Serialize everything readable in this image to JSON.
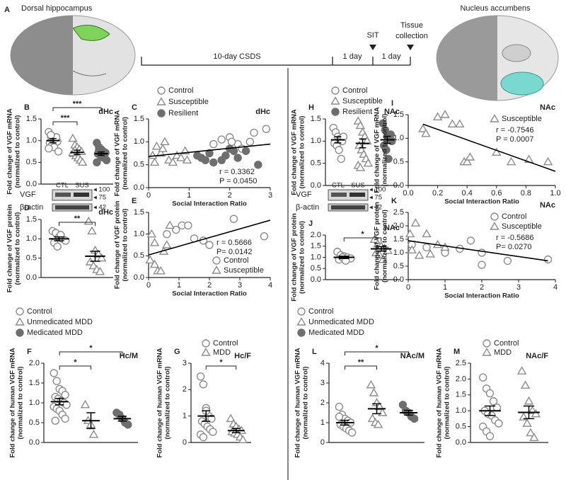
{
  "panel_a": {
    "label": "A",
    "left_title": "Dorsal hippocampus",
    "right_title": "Nucleus accumbens",
    "durations": [
      "10-day CSDS",
      "1 day",
      "1 day"
    ],
    "events": [
      [
        "SIT"
      ],
      [
        "Tissue",
        "collection"
      ]
    ]
  },
  "chart_data": [
    {
      "type": "strip",
      "panel_label": "B",
      "region": "dHc",
      "ylabel": [
        "Fold change of VGF mRNA",
        "(normalized to control)"
      ],
      "ylim": [
        0,
        1.5
      ],
      "yticks": [
        {
          "value": 0,
          "label": "0.0"
        },
        0.5,
        {
          "value": 1,
          "label": "1.0"
        },
        1.5
      ],
      "significance": [
        "***",
        "***"
      ],
      "groups": [
        {
          "marker": "circle",
          "color": "#8c8c8c",
          "values": [
            1.2,
            1.1,
            1.05,
            1.0,
            0.98,
            0.95,
            0.9,
            0.85,
            1.08,
            0.75,
            0.82,
            1.13
          ],
          "mean": 1.0,
          "sem": 0.05
        },
        {
          "marker": "triangle",
          "color": "#8c8c8c",
          "values": [
            1.05,
            0.9,
            0.85,
            0.8,
            0.75,
            0.7,
            0.65,
            0.6,
            0.55,
            0.5,
            0.72,
            0.78
          ],
          "mean": 0.73,
          "sem": 0.05
        },
        {
          "marker": "filled-circle",
          "color": "#6e6e6e",
          "values": [
            0.95,
            0.85,
            0.8,
            0.75,
            0.72,
            0.7,
            0.68,
            0.65,
            0.6,
            0.55,
            0.5,
            0.78,
            0.62
          ],
          "mean": 0.7,
          "sem": 0.04
        }
      ]
    },
    {
      "type": "scatter",
      "panel_label": "C",
      "region": "dHc",
      "ylabel": [
        "Fold change of VGF mRNA",
        "(normalized to control)"
      ],
      "xlabel": "Social Interaction Ratio",
      "xlim": [
        0,
        3
      ],
      "xticks": [
        0,
        1,
        2,
        3
      ],
      "ylim": [
        0,
        1.5
      ],
      "yticks": [
        {
          "value": 0,
          "label": "0.0"
        },
        0.5,
        {
          "value": 1,
          "label": "1.0"
        },
        1.5
      ],
      "legend": "above",
      "stats": [
        "r = 0.3362",
        "P = 0.0450"
      ],
      "fit_line": {
        "x": [
          0,
          3
        ],
        "y": [
          0.68,
          0.95
        ]
      },
      "series": [
        {
          "name": "Control",
          "marker": "circle",
          "color": "#8c8c8c",
          "x": [
            1.8,
            2.0,
            2.2,
            2.5,
            2.9,
            2.3,
            1.6,
            2.6,
            2.05
          ],
          "values": [
            1.05,
            1.1,
            0.95,
            1.0,
            1.28,
            0.85,
            0.95,
            1.2,
            1.0
          ]
        },
        {
          "name": "Susceptible",
          "marker": "triangle",
          "color": "#8c8c8c",
          "x": [
            0.1,
            0.2,
            0.3,
            0.35,
            0.5,
            0.4,
            0.6,
            0.7,
            0.8,
            0.9,
            0.15,
            0.95
          ],
          "values": [
            0.7,
            0.9,
            0.75,
            0.85,
            0.6,
            1.0,
            0.55,
            0.7,
            0.65,
            0.8,
            0.55,
            0.6
          ]
        },
        {
          "name": "Resilient",
          "marker": "filled-circle",
          "color": "#6e6e6e",
          "x": [
            1.2,
            1.4,
            1.5,
            1.6,
            1.8,
            1.9,
            2.1,
            2.2,
            2.4,
            2.7,
            1.3,
            2.0
          ],
          "values": [
            0.7,
            0.6,
            0.75,
            0.55,
            0.6,
            0.7,
            0.8,
            0.65,
            0.8,
            0.5,
            0.65,
            0.85
          ]
        }
      ]
    },
    {
      "type": "strip",
      "panel_label": "D",
      "region": "dHc",
      "ylabel": [
        "Fold change of VGF protein",
        "(normalized to control)"
      ],
      "ylim": [
        0,
        1.5
      ],
      "yticks": [
        {
          "value": 0,
          "label": "0.0"
        },
        0.5,
        {
          "value": 1,
          "label": "1.0"
        },
        1.5
      ],
      "significance": [
        "**"
      ],
      "blot": {
        "columns": [
          "CTL",
          "SUS"
        ],
        "rows": [
          "VGF",
          "β-actin"
        ],
        "sizes": [
          "◂ 100",
          "◂ 75",
          "◂ 42"
        ]
      },
      "groups": [
        {
          "marker": "circle",
          "color": "#8c8c8c",
          "values": [
            1.2,
            1.15,
            1.05,
            1.0,
            0.95,
            0.9,
            0.8,
            1.1
          ],
          "mean": 1.0,
          "sem": 0.05
        },
        {
          "marker": "triangle",
          "color": "#8c8c8c",
          "values": [
            1.45,
            1.2,
            0.7,
            0.6,
            0.5,
            0.4,
            0.3,
            0.2,
            0.15
          ],
          "mean": 0.55,
          "sem": 0.13
        }
      ]
    },
    {
      "type": "scatter",
      "panel_label": "E",
      "ylabel": [
        "Fold change of VGF protein",
        "(normalized to control)"
      ],
      "xlabel": "Social Interaction Ratio",
      "xlim": [
        0,
        4
      ],
      "xticks": [
        0,
        1,
        2,
        3,
        4
      ],
      "ylim": [
        0,
        1.5
      ],
      "yticks": [
        {
          "value": 0,
          "label": "0.0"
        },
        0.5,
        {
          "value": 1,
          "label": "1.0"
        },
        1.5
      ],
      "legend": "bottom-right",
      "stats": [
        "r = 0.5666",
        "P= 0.0142"
      ],
      "fit_line": {
        "x": [
          0,
          4
        ],
        "y": [
          0.52,
          1.32
        ]
      },
      "series": [
        {
          "name": "Control",
          "marker": "circle",
          "color": "#8c8c8c",
          "x": [
            0.6,
            0.9,
            1.1,
            1.3,
            1.5,
            2.0,
            2.8,
            3.8,
            1.8
          ],
          "values": [
            1.0,
            1.1,
            1.2,
            1.2,
            0.9,
            0.75,
            1.35,
            0.95,
            0.85
          ]
        },
        {
          "name": "Susceptible",
          "marker": "triangle",
          "color": "#8c8c8c",
          "x": [
            0.05,
            0.2,
            0.3,
            0.4,
            0.5,
            0.7,
            0.6,
            0.1,
            0.2
          ],
          "values": [
            0.4,
            0.3,
            0.15,
            0.15,
            0.6,
            1.2,
            0.75,
            1.0,
            0.8
          ]
        }
      ]
    },
    {
      "type": "strip",
      "panel_label": "F",
      "region": "Hc/M",
      "ylabel": [
        "Fold change of human VGF mRNA",
        "(normalized to control)"
      ],
      "ylim": [
        0,
        2
      ],
      "yticks": [
        {
          "value": 0,
          "label": "0.0"
        },
        0.5,
        {
          "value": 1,
          "label": "1.0"
        },
        1.5,
        {
          "value": 2,
          "label": "2.0"
        }
      ],
      "significance": [
        "*",
        "*"
      ],
      "legend": "above",
      "groups": [
        {
          "name": "Control",
          "marker": "circle",
          "color": "#8c8c8c",
          "values": [
            1.75,
            1.55,
            1.35,
            1.3,
            1.2,
            1.15,
            1.1,
            1.05,
            1.0,
            0.95,
            0.9,
            0.85,
            0.8,
            0.7,
            0.6,
            0.55
          ],
          "mean": 1.03,
          "sem": 0.08
        },
        {
          "name": "Unmedicated MDD",
          "marker": "triangle",
          "color": "#8c8c8c",
          "values": [
            0.95,
            0.55,
            0.45,
            0.2
          ],
          "mean": 0.55,
          "sem": 0.2
        },
        {
          "name": "Medicated MDD",
          "marker": "filled-circle",
          "color": "#6e6e6e",
          "values": [
            0.75,
            0.7,
            0.6,
            0.5,
            0.45
          ],
          "mean": 0.6,
          "sem": 0.06
        }
      ]
    },
    {
      "type": "strip",
      "panel_label": "G",
      "region": "Hc/F",
      "ylabel": [
        "Fold change of human VGF mRNA",
        "(normalized to control)"
      ],
      "ylim": [
        0,
        3
      ],
      "yticks": [
        0,
        1,
        2,
        3
      ],
      "significance": [
        "*"
      ],
      "legend": "above",
      "groups": [
        {
          "name": "Control",
          "marker": "circle",
          "color": "#8c8c8c",
          "values": [
            2.5,
            2.2,
            1.3,
            1.0,
            0.9,
            0.8,
            0.7,
            0.6,
            0.5,
            0.4,
            0.3,
            0.2,
            1.2
          ],
          "mean": 1.0,
          "sem": 0.2
        },
        {
          "name": "MDD",
          "marker": "triangle",
          "color": "#8c8c8c",
          "values": [
            0.9,
            0.7,
            0.6,
            0.5,
            0.45,
            0.4,
            0.35,
            0.3,
            0.2,
            0.1
          ],
          "mean": 0.45,
          "sem": 0.08
        }
      ]
    },
    {
      "type": "strip",
      "panel_label": "H",
      "region": "NAc",
      "ylabel": [
        "Fold change of VGF mRNA",
        "(normalized to control)"
      ],
      "ylim": [
        0,
        1.5
      ],
      "yticks": [
        {
          "value": 0,
          "label": "0.0"
        },
        0.5,
        {
          "value": 1,
          "label": "1.0"
        },
        1.5
      ],
      "legend": "above",
      "groups": [
        {
          "name": "Control",
          "marker": "circle",
          "color": "#8c8c8c",
          "values": [
            1.3,
            1.2,
            1.1,
            1.05,
            1.0,
            0.95,
            0.9,
            0.8,
            0.6,
            1.1
          ],
          "mean": 1.03,
          "sem": 0.07
        },
        {
          "name": "Susceptible",
          "marker": "triangle",
          "color": "#8c8c8c",
          "values": [
            1.45,
            1.35,
            1.2,
            1.1,
            1.0,
            0.9,
            0.8,
            0.7,
            0.6,
            0.5,
            0.45,
            0.4
          ],
          "mean": 0.95,
          "sem": 0.1
        },
        {
          "name": "Resilient",
          "marker": "filled-circle",
          "color": "#6e6e6e",
          "values": [
            1.4,
            1.25,
            1.1,
            1.05,
            1.0,
            0.9,
            0.8,
            0.6,
            1.15
          ],
          "mean": 1.03,
          "sem": 0.08
        }
      ]
    },
    {
      "type": "scatter",
      "panel_label": "I",
      "region": "NAc",
      "ylabel": [
        "Fold change of VGF mRNA",
        "(normalized to control)"
      ],
      "xlabel": "Social Interaction Ratio",
      "xlim": [
        0,
        1
      ],
      "xticks": [
        {
          "value": 0,
          "label": "0.0"
        },
        0.2,
        0.4,
        0.6,
        0.8,
        {
          "value": 1,
          "label": "1.0"
        }
      ],
      "ylim": [
        0,
        1.5
      ],
      "yticks": [
        {
          "value": 0,
          "label": "0.0"
        },
        0.5,
        {
          "value": 1,
          "label": "1.0"
        },
        1.5
      ],
      "legend": "top-right",
      "stats": [
        "r = -0.7546",
        "P = 0.0007"
      ],
      "fit_line": {
        "x": [
          0.1,
          1
        ],
        "y": [
          1.3,
          0.3
        ]
      },
      "series": [
        {
          "name": "Susceptible",
          "marker": "triangle",
          "color": "#8c8c8c",
          "x": [
            0.1,
            0.12,
            0.2,
            0.25,
            0.3,
            0.35,
            0.38,
            0.4,
            0.42,
            0.6,
            0.7,
            0.82,
            0.95
          ],
          "values": [
            1.2,
            1.1,
            1.45,
            1.5,
            1.3,
            1.3,
            0.5,
            0.5,
            0.6,
            0.7,
            0.5,
            0.55,
            0.5
          ]
        }
      ]
    },
    {
      "type": "strip",
      "panel_label": "J",
      "region": "NAc",
      "ylabel": [
        "Fold change of VGF protein",
        "(normalized to control)"
      ],
      "ylim": [
        0,
        2
      ],
      "yticks": [
        {
          "value": 0,
          "label": "0.0"
        },
        0.5,
        {
          "value": 1,
          "label": "1.0"
        },
        1.5,
        {
          "value": 2,
          "label": "2.0"
        }
      ],
      "significance": [
        "*"
      ],
      "blot": {
        "columns": [
          "CTL",
          "SUS"
        ],
        "rows": [
          "VGF",
          "β-actin"
        ],
        "sizes": [
          "◂ 100",
          "◂ 75",
          "◂ 42"
        ]
      },
      "groups": [
        {
          "marker": "circle",
          "color": "#8c8c8c",
          "values": [
            1.25,
            1.1,
            1.05,
            1.0,
            0.95,
            0.9,
            1.0,
            0.85
          ],
          "mean": 1.0,
          "sem": 0.05
        },
        {
          "marker": "triangle",
          "color": "#8c8c8c",
          "values": [
            1.8,
            1.6,
            1.5,
            1.4,
            1.3,
            1.2,
            1.1,
            0.9
          ],
          "mean": 1.38,
          "sem": 0.1
        }
      ]
    },
    {
      "type": "scatter",
      "panel_label": "K",
      "region": "NAc",
      "ylabel": [
        "Fold change of VGF protein",
        "(normalized to control)"
      ],
      "xlabel": "Social Interaction Ratio",
      "xlim": [
        0,
        4
      ],
      "xticks": [
        0,
        1,
        2,
        3,
        4
      ],
      "ylim": [
        0,
        2.5
      ],
      "yticks": [
        {
          "value": 0,
          "label": "0.0"
        },
        0.5,
        {
          "value": 1,
          "label": "1.0"
        },
        1.5,
        {
          "value": 2,
          "label": "2.0"
        },
        2.5
      ],
      "legend": "top-right",
      "stats": [
        "r = -0.5686",
        "P= 0.0270"
      ],
      "fit_line": {
        "x": [
          0,
          3.8
        ],
        "y": [
          1.45,
          0.7
        ]
      },
      "series": [
        {
          "name": "Control",
          "marker": "circle",
          "color": "#8c8c8c",
          "x": [
            0.1,
            0.5,
            1.0,
            1.4,
            1.7,
            2.0,
            2.7,
            3.8,
            2.0
          ],
          "values": [
            1.3,
            1.2,
            1.0,
            1.15,
            1.45,
            1.0,
            0.7,
            0.75,
            0.55
          ]
        },
        {
          "name": "Susceptible",
          "marker": "triangle",
          "color": "#8c8c8c",
          "x": [
            0.05,
            0.2,
            0.1,
            0.3,
            0.5,
            0.6,
            0.8,
            1.0
          ],
          "values": [
            1.7,
            2.1,
            1.1,
            0.9,
            1.7,
            0.95,
            1.3,
            1.2
          ]
        }
      ]
    },
    {
      "type": "strip",
      "panel_label": "L",
      "region": "NAc/M",
      "ylabel": [
        "Fold change of human VGF mRNA",
        "(normalized to control)"
      ],
      "ylim": [
        0,
        4
      ],
      "yticks": [
        0,
        1,
        2,
        3,
        4
      ],
      "significance": [
        "**",
        "*"
      ],
      "legend": "above",
      "groups": [
        {
          "name": "Control",
          "marker": "circle",
          "color": "#8c8c8c",
          "values": [
            1.8,
            1.4,
            1.2,
            1.1,
            1.0,
            0.9,
            0.8,
            0.7,
            0.6,
            0.5,
            1.3
          ],
          "mean": 1.0,
          "sem": 0.12
        },
        {
          "name": "Unmedicated MDD",
          "marker": "triangle",
          "color": "#8c8c8c",
          "values": [
            2.9,
            2.5,
            2.0,
            1.8,
            1.5,
            1.2,
            1.0,
            0.9
          ],
          "mean": 1.7,
          "sem": 0.25
        },
        {
          "name": "Medicated MDD",
          "marker": "filled-circle",
          "color": "#6e6e6e",
          "values": [
            1.9,
            1.6,
            1.5,
            1.3,
            1.2
          ],
          "mean": 1.5,
          "sem": 0.12
        }
      ]
    },
    {
      "type": "strip",
      "panel_label": "M",
      "region": "NAc/F",
      "ylabel": [
        "Fold change of human VGF mRNA",
        "(normalized to control)"
      ],
      "ylim": [
        0,
        2.5
      ],
      "yticks": [
        {
          "value": 0,
          "label": "0.0"
        },
        0.5,
        {
          "value": 1,
          "label": "1.0"
        },
        1.5,
        {
          "value": 2,
          "label": "2.0"
        },
        2.5
      ],
      "legend": "above",
      "groups": [
        {
          "name": "Control",
          "marker": "circle",
          "color": "#8c8c8c",
          "values": [
            2.05,
            1.7,
            1.55,
            1.3,
            1.1,
            1.0,
            0.9,
            0.85,
            0.7,
            0.6,
            0.5,
            0.35,
            0.2
          ],
          "mean": 1.0,
          "sem": 0.15
        },
        {
          "name": "MDD",
          "marker": "triangle",
          "color": "#8c8c8c",
          "values": [
            2.25,
            1.8,
            1.3,
            1.0,
            0.9,
            0.8,
            0.6,
            0.3,
            0.15
          ],
          "mean": 0.95,
          "sem": 0.2
        }
      ]
    }
  ]
}
